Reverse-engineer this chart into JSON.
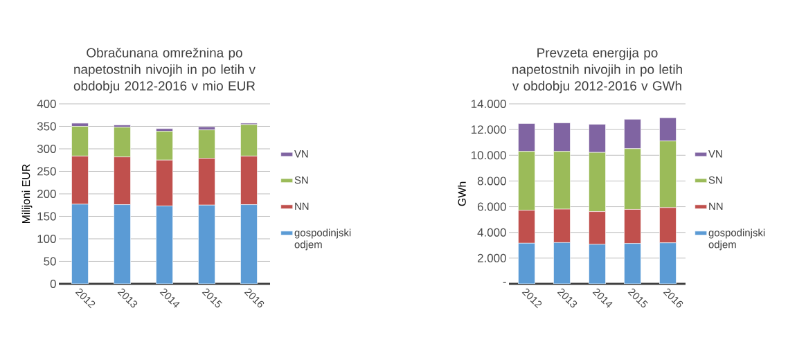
{
  "chart_data": [
    {
      "type": "bar",
      "stacked": true,
      "title": "Obračunana omrežnina po napetostnih nivojih in po letih v obdobju 2012-2016 v mio EUR",
      "ylabel": "Milijoni EUR",
      "categories": [
        "2012",
        "2013",
        "2014",
        "2015",
        "2016"
      ],
      "series": [
        {
          "name": "gospodinjski odjem",
          "color": "#5b9bd5",
          "values": [
            177,
            176,
            173,
            175,
            176
          ]
        },
        {
          "name": "NN",
          "color": "#c0504d",
          "values": [
            107,
            106,
            102,
            104,
            108
          ]
        },
        {
          "name": "SN",
          "color": "#9bbb59",
          "values": [
            66,
            66,
            64,
            63,
            70
          ]
        },
        {
          "name": "VN",
          "color": "#8064a2",
          "values": [
            7,
            5,
            6,
            7,
            3
          ]
        }
      ],
      "ylim": [
        0,
        400
      ],
      "yticks": [
        0,
        50,
        100,
        150,
        200,
        250,
        300,
        350,
        400
      ],
      "grid": "y",
      "legend": "right"
    },
    {
      "type": "bar",
      "stacked": true,
      "title": "Prevzeta energija po napetostnih nivojih in po letih v obdobju 2012-2016 v GWh",
      "ylabel": "GWh",
      "categories": [
        "2012",
        "2013",
        "2014",
        "2015",
        "2016"
      ],
      "series": [
        {
          "name": "gospodinjski odjem",
          "color": "#5b9bd5",
          "values": [
            3160,
            3210,
            3070,
            3140,
            3190
          ]
        },
        {
          "name": "NN",
          "color": "#c0504d",
          "values": [
            2560,
            2600,
            2550,
            2650,
            2740
          ]
        },
        {
          "name": "SN",
          "color": "#9bbb59",
          "values": [
            4580,
            4490,
            4600,
            4720,
            5180
          ]
        },
        {
          "name": "VN",
          "color": "#8064a2",
          "values": [
            2170,
            2220,
            2190,
            2290,
            1810
          ]
        }
      ],
      "ylim": [
        0,
        14000
      ],
      "yticks": [
        {
          "value": 0,
          "label": "-"
        },
        {
          "value": 2000,
          "label": "2.000"
        },
        {
          "value": 4000,
          "label": "4.000"
        },
        {
          "value": 6000,
          "label": "6.000"
        },
        {
          "value": 8000,
          "label": "8.000"
        },
        {
          "value": 10000,
          "label": "10.000"
        },
        {
          "value": 12000,
          "label": "12.000"
        },
        {
          "value": 14000,
          "label": "14.000"
        }
      ],
      "grid": "y",
      "legend": "right"
    }
  ]
}
